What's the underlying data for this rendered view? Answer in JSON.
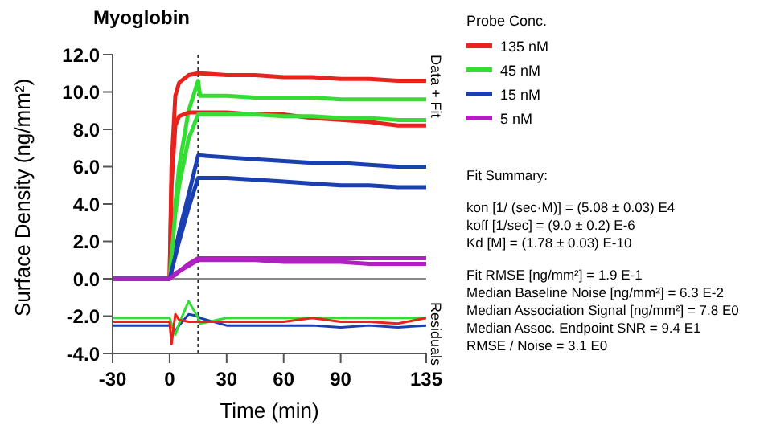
{
  "chart_data": {
    "type": "line",
    "title": "Myoglobin",
    "xlabel": "Time (min)",
    "ylabel": "Surface Density (ng/mm²)",
    "legend_title": "Probe Conc.",
    "legend": "right",
    "x": [
      -30,
      -15,
      0,
      1,
      3,
      5,
      10,
      15,
      16,
      30,
      45,
      60,
      75,
      90,
      105,
      120,
      135
    ],
    "xlim": [
      -30,
      135
    ],
    "xticks": [
      -30,
      0,
      30,
      60,
      90,
      135
    ],
    "ylim": [
      -4,
      12
    ],
    "yticks": [
      {
        "value": -4,
        "label": "-4.0"
      },
      {
        "value": -2,
        "label": "-2.0"
      },
      {
        "value": 0,
        "label": "0.0"
      },
      {
        "value": 2,
        "label": "2.0"
      },
      {
        "value": 4,
        "label": "4.0"
      },
      {
        "value": 6,
        "label": "6.0"
      },
      {
        "value": 8,
        "label": "8.0"
      },
      {
        "value": 10,
        "label": "10.0"
      },
      {
        "value": 12,
        "label": "12.0"
      }
    ],
    "grid": false,
    "ref_lines": [
      {
        "axis": "x",
        "value": 15,
        "line_style": "dotted",
        "color": "#333333"
      },
      {
        "axis": "y",
        "value": 0,
        "line_style": "solid",
        "color": "#888888"
      }
    ],
    "series": [
      {
        "name": "135 nM",
        "color": "#e8231e",
        "values": [
          0,
          0,
          0,
          6,
          9.8,
          10.5,
          10.9,
          11,
          11,
          10.9,
          10.9,
          10.8,
          10.8,
          10.7,
          10.7,
          10.6,
          10.6
        ]
      },
      {
        "name": "45 nM",
        "color": "#33dd33",
        "values": [
          0,
          0,
          0,
          1.5,
          4,
          6,
          9,
          10.6,
          9.8,
          9.8,
          9.7,
          9.7,
          9.7,
          9.6,
          9.6,
          9.6,
          9.6
        ]
      },
      {
        "name": "15 nM",
        "color": "#1a3fb0",
        "values": [
          0,
          0,
          0,
          0.5,
          1.5,
          2.5,
          4.5,
          6.6,
          6.6,
          6.5,
          6.4,
          6.3,
          6.2,
          6.2,
          6.1,
          6,
          6
        ]
      },
      {
        "name": "5 nM",
        "color": "#b020c0",
        "values": [
          0,
          0,
          0,
          0.1,
          0.3,
          0.4,
          0.8,
          1.1,
          1.1,
          1.1,
          1.1,
          1.1,
          1.1,
          1.1,
          1.1,
          1.1,
          1.1
        ]
      },
      {
        "color": "#e8231e",
        "values": [
          0,
          0,
          0,
          5,
          8.2,
          8.7,
          8.9,
          8.9,
          8.9,
          8.9,
          8.8,
          8.8,
          8.6,
          8.5,
          8.4,
          8.2,
          8.2
        ]
      },
      {
        "color": "#33dd33",
        "values": [
          0,
          0,
          0,
          1.2,
          3.5,
          5,
          7.5,
          8.8,
          8.8,
          8.8,
          8.8,
          8.7,
          8.7,
          8.6,
          8.6,
          8.5,
          8.5
        ]
      },
      {
        "color": "#1a3fb0",
        "values": [
          0,
          0,
          0,
          0.4,
          1.2,
          2,
          3.8,
          5.4,
          5.4,
          5.4,
          5.3,
          5.2,
          5.1,
          5,
          5,
          4.9,
          4.9
        ]
      },
      {
        "color": "#b020c0",
        "values": [
          0,
          0,
          0,
          0.1,
          0.2,
          0.4,
          0.7,
          1,
          1,
          1,
          1,
          0.9,
          0.9,
          0.9,
          0.8,
          0.8,
          0.8
        ]
      },
      {
        "color": "#1a3fb0",
        "values": [
          -2.5,
          -2.5,
          -2.5,
          -2.5,
          -2.8,
          -2.5,
          -1.9,
          -2,
          -2.1,
          -2.5,
          -2.5,
          -2.5,
          -2.5,
          -2.6,
          -2.5,
          -2.6,
          -2.5
        ]
      },
      {
        "color": "#33dd33",
        "values": [
          -2.1,
          -2.1,
          -2.1,
          -2.4,
          -3,
          -2.4,
          -1.2,
          -2.1,
          -2.4,
          -2.1,
          -2.1,
          -2.1,
          -2.1,
          -2.1,
          -2.1,
          -2.1,
          -2.1
        ]
      },
      {
        "color": "#e8231e",
        "values": [
          -2.3,
          -2.3,
          -2.3,
          -3.5,
          -1.9,
          -2.2,
          -2.3,
          -2.3,
          -2.3,
          -2.3,
          -2.3,
          -2.3,
          -2.1,
          -2.3,
          -2.3,
          -2.4,
          -2.1
        ]
      }
    ],
    "annotations": [
      "Data + Fit",
      "Residuals",
      "Fit Summary:",
      "kon [1/ (sec·M)] = (5.08 ± 0.03) E4",
      "koff [1/sec] = (9.0 ± 0.2) E-6",
      "Kd [M] = (1.78 ± 0.03) E-10",
      "Fit RMSE [ng/mm²] = 1.9 E-1",
      "Median Baseline Noise [ng/mm²] = 6.3 E-2",
      "Median Association Signal [ng/mm²] = 7.8 E0",
      "Median Assoc. Endpoint SNR = 9.4 E1",
      "RMSE / Noise = 3.1 E0"
    ]
  }
}
